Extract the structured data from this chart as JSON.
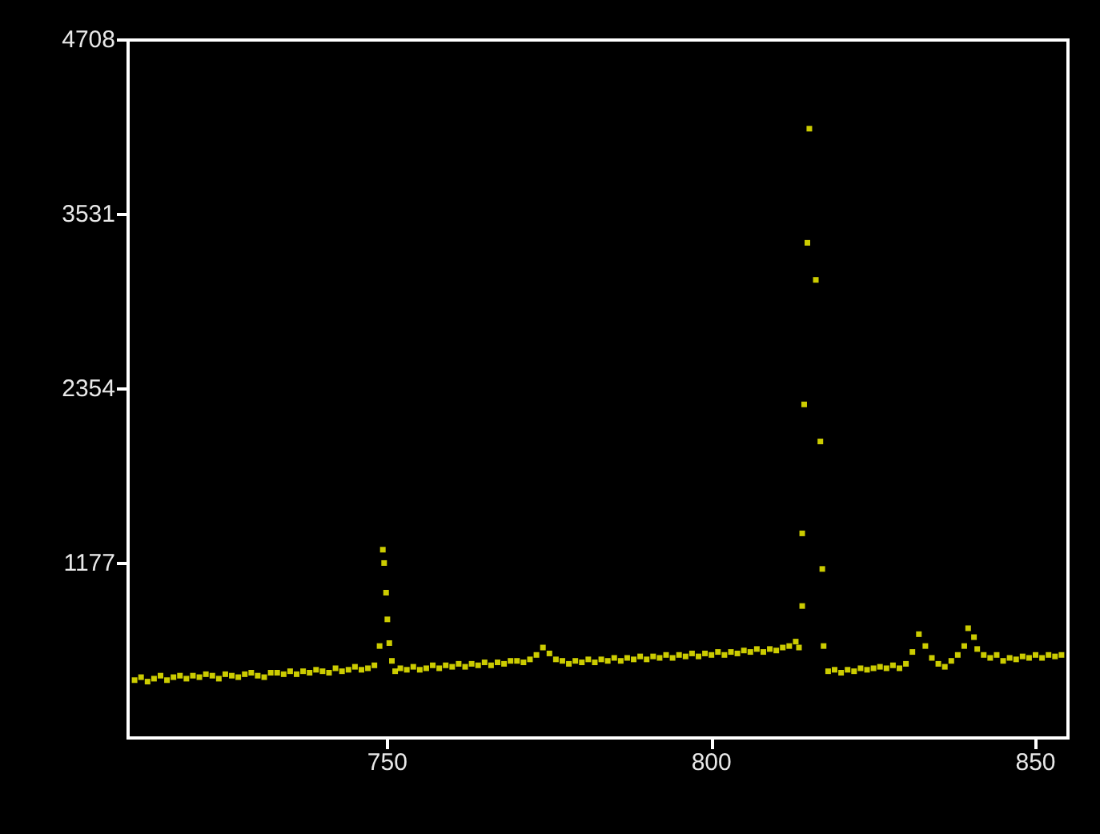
{
  "chart_data": {
    "type": "scatter",
    "marker": "square",
    "grid": false,
    "xlim": [
      710,
      855
    ],
    "xticks": [
      750,
      800,
      850
    ],
    "ylim": [
      0,
      4708
    ],
    "yticks": [
      1177,
      2354,
      3531,
      4708
    ],
    "series": [
      {
        "color": "#ffff00",
        "x": [
          711,
          712,
          713,
          714,
          715,
          716,
          717,
          718,
          719,
          720,
          721,
          722,
          723,
          724,
          725,
          726,
          727,
          728,
          729,
          730,
          731,
          732,
          733,
          734,
          735,
          736,
          737,
          738,
          739,
          740,
          741,
          742,
          743,
          744,
          745,
          746,
          747,
          748,
          748.8,
          749.3,
          749.5,
          749.8,
          750.0,
          750.3,
          750.7,
          751.2,
          752,
          753,
          754,
          755,
          756,
          757,
          758,
          759,
          760,
          761,
          762,
          763,
          764,
          765,
          766,
          767,
          768,
          769,
          770,
          771,
          772,
          773,
          774,
          775,
          776,
          777,
          778,
          779,
          780,
          781,
          782,
          783,
          784,
          785,
          786,
          787,
          788,
          789,
          790,
          791,
          792,
          793,
          794,
          795,
          796,
          797,
          798,
          799,
          800,
          801,
          802,
          803,
          804,
          805,
          806,
          807,
          808,
          809,
          810,
          811,
          812,
          813,
          813.5,
          814.0,
          814.0,
          814.3,
          814.8,
          815.1,
          816.1,
          816.8,
          817.1,
          817.3,
          818,
          819,
          820,
          821,
          822,
          823,
          824,
          825,
          826,
          827,
          828,
          829,
          830,
          831,
          832,
          833,
          834,
          835,
          836,
          837,
          838,
          839,
          839.6,
          840.5,
          841,
          842,
          843,
          844,
          845,
          846,
          847,
          848,
          849,
          850,
          851,
          852,
          853,
          854
        ],
        "values": [
          390,
          410,
          380,
          400,
          420,
          390,
          410,
          420,
          400,
          420,
          410,
          430,
          420,
          400,
          430,
          420,
          410,
          430,
          440,
          420,
          410,
          440,
          440,
          430,
          450,
          430,
          450,
          440,
          460,
          450,
          440,
          470,
          450,
          460,
          480,
          460,
          470,
          490,
          620,
          1270,
          1180,
          980,
          800,
          640,
          520,
          450,
          470,
          460,
          480,
          460,
          470,
          490,
          470,
          490,
          480,
          500,
          480,
          500,
          490,
          510,
          490,
          510,
          500,
          520,
          520,
          510,
          530,
          560,
          610,
          570,
          530,
          520,
          500,
          520,
          510,
          530,
          510,
          530,
          520,
          540,
          520,
          540,
          530,
          550,
          530,
          550,
          540,
          560,
          540,
          560,
          550,
          570,
          550,
          570,
          560,
          580,
          560,
          580,
          570,
          590,
          580,
          600,
          580,
          600,
          590,
          610,
          620,
          650,
          610,
          890,
          1380,
          2250,
          3340,
          4110,
          3090,
          2000,
          1140,
          620,
          450,
          460,
          440,
          460,
          450,
          470,
          460,
          470,
          480,
          470,
          490,
          470,
          500,
          580,
          700,
          620,
          540,
          500,
          480,
          520,
          560,
          620,
          740,
          680,
          600,
          560,
          540,
          560,
          520,
          540,
          530,
          550,
          540,
          560,
          540,
          560,
          550,
          560
        ]
      }
    ]
  }
}
